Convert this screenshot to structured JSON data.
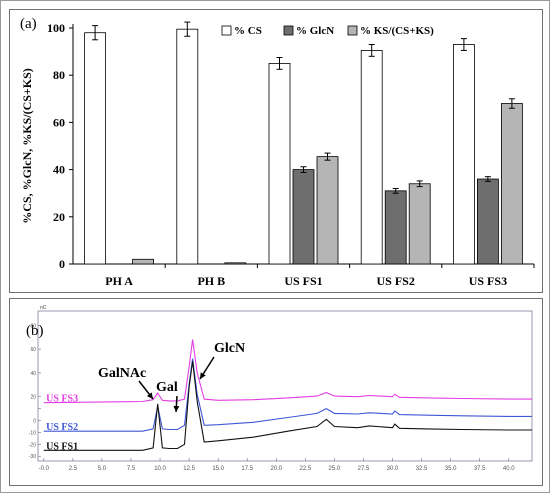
{
  "chart_data": [
    {
      "type": "bar",
      "panel_label": "(a)",
      "ylabel": "%CS, %GlcN, %KS/(CS+KS)",
      "ylim": [
        0,
        100
      ],
      "yticks": [
        0,
        20,
        40,
        60,
        80,
        100
      ],
      "categories": [
        "PH A",
        "PH B",
        "US FS1",
        "US FS2",
        "US FS3"
      ],
      "legend_position": "top-right",
      "grid": false,
      "series": [
        {
          "name": "% CS",
          "color": "#ffffff",
          "values": [
            98,
            99.5,
            85,
            90.5,
            93
          ],
          "errors": [
            3,
            3,
            2.5,
            2.5,
            2.5
          ]
        },
        {
          "name": "% GlcN",
          "color": "#6e6e6e",
          "values": [
            0,
            0,
            40,
            31,
            36
          ],
          "errors": [
            0,
            0,
            1.2,
            1,
            1
          ]
        },
        {
          "name": "% KS/(CS+KS)",
          "color": "#b5b5b5",
          "values": [
            2,
            0.5,
            45.5,
            34,
            68
          ],
          "errors": [
            0,
            0,
            1.5,
            1.2,
            2
          ]
        }
      ]
    },
    {
      "type": "line",
      "panel_label": "(b)",
      "unit_label": "nC",
      "xlim": [
        -0.5,
        42
      ],
      "ylim": [
        -34,
        92
      ],
      "xticks": [
        -0.0,
        2.5,
        5.0,
        7.5,
        10.0,
        12.5,
        15.0,
        17.5,
        20.0,
        22.5,
        25.0,
        27.5,
        30.0,
        32.5,
        35.0,
        37.5,
        40.0
      ],
      "xtick_labels": [
        "-0.0",
        "2.5",
        "5.0",
        "7.5",
        "10.0",
        "12.5",
        "15.0",
        "17.5",
        "20.0",
        "22.5",
        "25.0",
        "27.5",
        "30.0",
        "32.5",
        "35.0",
        "37.5",
        "40.0"
      ],
      "yticks": [
        -30,
        -20,
        -10,
        0,
        10,
        20,
        40,
        60,
        80
      ],
      "ytick_labels": [
        "-30",
        "-20",
        "-10",
        "0",
        "",
        "20",
        "40",
        "60",
        "80"
      ],
      "annotations": [
        "GalNAc",
        "Gal",
        "GlcN"
      ],
      "series": [
        {
          "name": "US FS3",
          "color": "#e23de2",
          "x": [
            0,
            8.5,
            9.4,
            9.8,
            10.2,
            10.8,
            11.5,
            12.1,
            12.5,
            12.8,
            13.2,
            13.8,
            15,
            18,
            21,
            23.5,
            24.3,
            25,
            27,
            28,
            30,
            30.2,
            30.6,
            33,
            36,
            40,
            42
          ],
          "y": [
            15,
            16,
            17.5,
            23,
            17,
            16.5,
            16.5,
            18,
            45,
            68,
            40,
            18,
            17,
            17.5,
            19,
            20.5,
            23.5,
            20.5,
            20,
            21,
            20,
            22,
            19.5,
            19,
            18.5,
            18,
            18
          ]
        },
        {
          "name": "US FS2",
          "color": "#3f57d6",
          "x": [
            0,
            8.5,
            9.4,
            9.8,
            10.2,
            10.8,
            11.5,
            12.1,
            12.5,
            12.8,
            13.2,
            13.8,
            15,
            18,
            21,
            23.5,
            24.3,
            25,
            27,
            28,
            30,
            30.2,
            30.6,
            33,
            36,
            40,
            42
          ],
          "y": [
            -9,
            -9,
            -7,
            12,
            -7,
            -7.5,
            -7.5,
            -4,
            30,
            52,
            22,
            -4,
            -3.5,
            -1.5,
            2.5,
            6,
            10,
            6,
            5.5,
            6.5,
            5.5,
            8,
            5,
            4.5,
            4,
            3.5,
            3.5
          ]
        },
        {
          "name": "US FS1",
          "color": "#111111",
          "x": [
            0,
            8.5,
            9.4,
            9.8,
            10.2,
            10.8,
            11.5,
            12.1,
            12.5,
            12.8,
            13.2,
            13.8,
            15,
            18,
            21,
            23.5,
            24.3,
            25,
            27,
            28,
            30,
            30.2,
            30.6,
            33,
            36,
            40,
            42
          ],
          "y": [
            -25,
            -25,
            -23,
            14,
            -23,
            -23.5,
            -23.5,
            -20,
            28,
            50,
            16,
            -18,
            -17,
            -14,
            -9,
            -5,
            1,
            -5,
            -6,
            -4.5,
            -6,
            -3,
            -6.5,
            -7,
            -7.5,
            -8,
            -8
          ]
        }
      ]
    }
  ]
}
